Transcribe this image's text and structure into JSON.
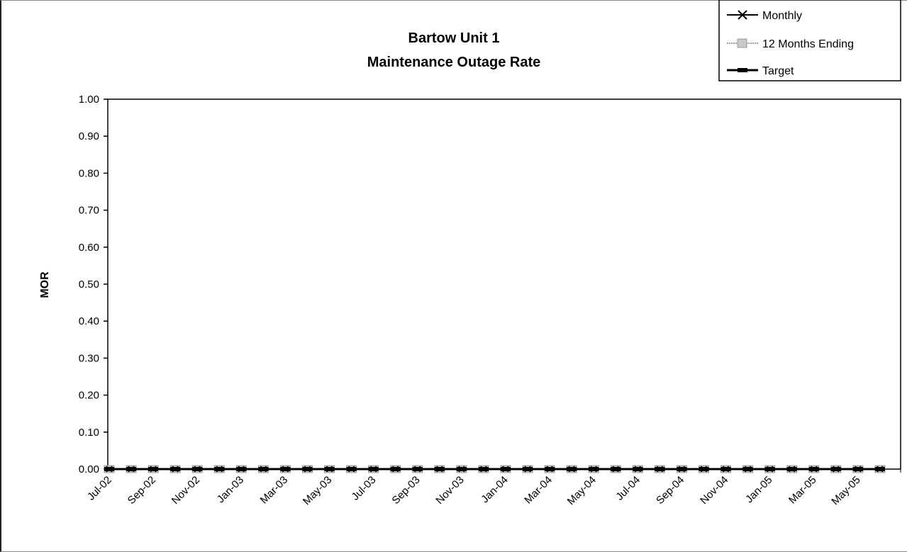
{
  "chart_data": {
    "type": "line",
    "title": "Bartow Unit 1",
    "subtitle": "Maintenance Outage Rate",
    "xlabel": "",
    "ylabel": "MOR",
    "ylim": [
      0,
      1
    ],
    "yticks": [
      "0.00",
      "0.10",
      "0.20",
      "0.30",
      "0.40",
      "0.50",
      "0.60",
      "0.70",
      "0.80",
      "0.90",
      "1.00"
    ],
    "categories": [
      "Jul-02",
      "Aug-02",
      "Sep-02",
      "Oct-02",
      "Nov-02",
      "Dec-02",
      "Jan-03",
      "Feb-03",
      "Mar-03",
      "Apr-03",
      "May-03",
      "Jun-03",
      "Jul-03",
      "Aug-03",
      "Sep-03",
      "Oct-03",
      "Nov-03",
      "Dec-03",
      "Jan-04",
      "Feb-04",
      "Mar-04",
      "Apr-04",
      "May-04",
      "Jun-04",
      "Jul-04",
      "Aug-04",
      "Sep-04",
      "Oct-04",
      "Nov-04",
      "Dec-04",
      "Jan-05",
      "Feb-05",
      "Mar-05",
      "Apr-05",
      "May-05",
      "Jun-05"
    ],
    "x_tick_labels": [
      "Jul-02",
      "Sep-02",
      "Nov-02",
      "Jan-03",
      "Mar-03",
      "May-03",
      "Jul-03",
      "Sep-03",
      "Nov-03",
      "Jan-04",
      "Mar-04",
      "May-04",
      "Jul-04",
      "Sep-04",
      "Nov-04",
      "Jan-05",
      "Mar-05",
      "May-05"
    ],
    "series": [
      {
        "name": "Monthly",
        "color": "#000000",
        "marker": "x",
        "values": [
          0,
          0,
          0,
          0,
          0,
          0,
          0,
          0,
          0,
          0,
          0,
          0,
          0,
          0,
          0,
          0,
          0,
          0,
          0,
          0,
          0,
          0,
          0,
          0,
          0,
          0,
          0,
          0,
          0,
          0,
          0,
          0,
          0,
          0,
          0,
          0
        ]
      },
      {
        "name": "12 Months Ending",
        "color": "#a0a0a0",
        "marker": "square",
        "values": [
          0,
          0,
          0,
          0,
          0,
          0,
          0,
          0,
          0,
          0,
          0,
          0,
          0,
          0,
          0,
          0,
          0,
          0,
          0,
          0,
          0,
          0,
          0,
          0,
          0,
          0,
          0,
          0,
          0,
          0,
          0,
          0,
          0,
          0,
          0,
          0
        ]
      },
      {
        "name": "Target",
        "color": "#000000",
        "marker": "none",
        "values": [
          0,
          0,
          0,
          0,
          0,
          0,
          0,
          0,
          0,
          0,
          0,
          0,
          0,
          0,
          0,
          0,
          0,
          0,
          0,
          0,
          0,
          0,
          0,
          0,
          0,
          0,
          0,
          0,
          0,
          0,
          0,
          0,
          0,
          0,
          0,
          0
        ]
      }
    ],
    "grid": false,
    "legend_position": "top-right"
  }
}
